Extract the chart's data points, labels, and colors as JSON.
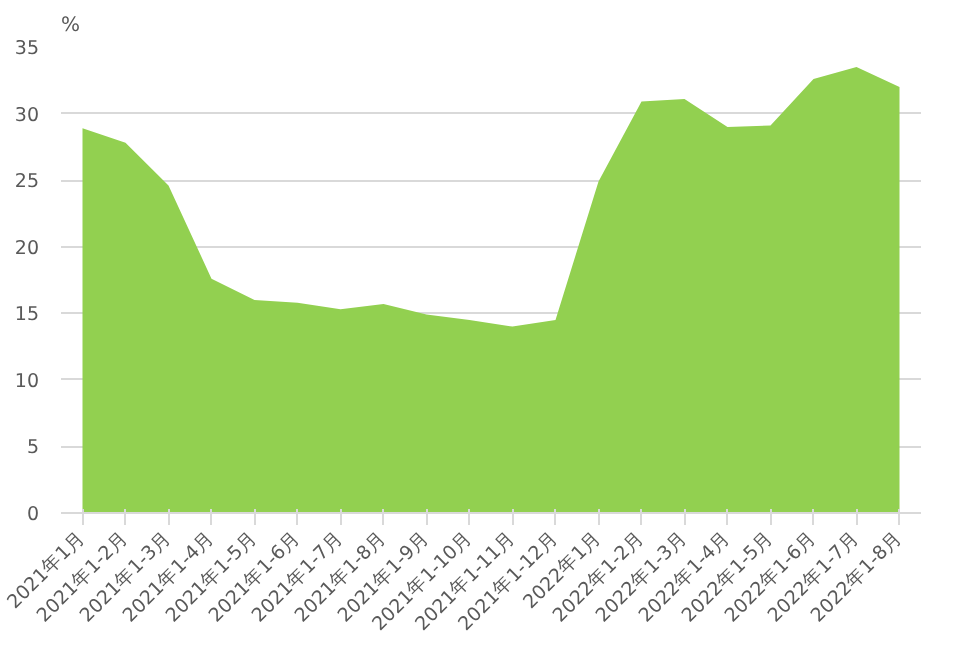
{
  "chart_data": {
    "type": "area",
    "ylabel": "%",
    "color": "#92d050",
    "categories": [
      "2021年1月",
      "2021年1-2月",
      "2021年1-3月",
      "2021年1-4月",
      "2021年1-5月",
      "2021年1-6月",
      "2021年1-7月",
      "2021年1-8月",
      "2021年1-9月",
      "2021年1-10月",
      "2021年1-11月",
      "2021年1-12月",
      "2022年1月",
      "2022年1-2月",
      "2022年1-3月",
      "2022年1-4月",
      "2022年1-5月",
      "2022年1-6月",
      "2022年1-7月",
      "2022年1-8月"
    ],
    "values": [
      28.9,
      27.8,
      24.6,
      17.6,
      16.0,
      15.8,
      15.3,
      15.7,
      14.9,
      14.5,
      14.0,
      14.5,
      24.9,
      30.9,
      31.1,
      29.0,
      29.1,
      32.6,
      33.5,
      32.0
    ],
    "ylim": [
      0,
      35
    ],
    "yticks": [
      0,
      5,
      10,
      15,
      20,
      25,
      30,
      35
    ],
    "grid": "y"
  }
}
